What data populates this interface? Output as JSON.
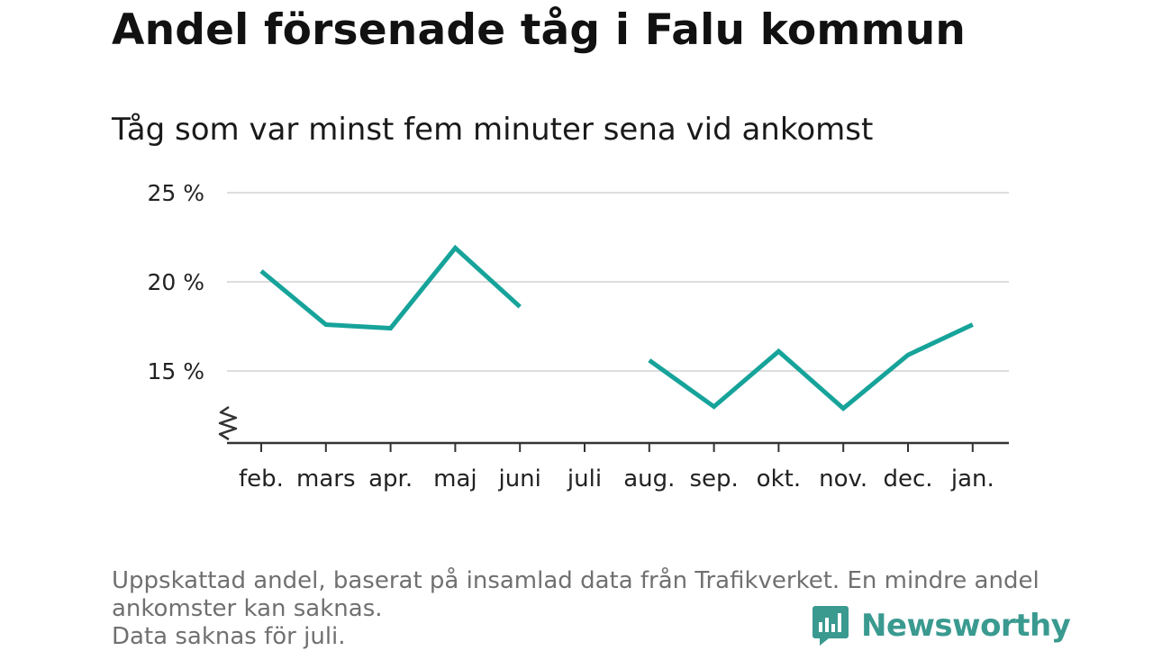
{
  "header": {
    "title": "Andel försenade tåg i Falu kommun",
    "subtitle": "Tåg som var minst fem minuter sena vid ankomst"
  },
  "chart_data": {
    "type": "line",
    "title": "Andel försenade tåg i Falu kommun",
    "subtitle": "Tåg som var minst fem minuter sena vid ankomst",
    "categories": [
      "feb.",
      "mars",
      "apr.",
      "maj",
      "juni",
      "juli",
      "aug.",
      "sep.",
      "okt.",
      "nov.",
      "dec.",
      "jan."
    ],
    "series": [
      {
        "values": [
          20.6,
          17.6,
          17.4,
          21.9,
          18.6,
          null,
          15.6,
          13.0,
          16.1,
          12.9,
          15.9,
          17.6
        ],
        "color": "#16a39a"
      }
    ],
    "yticks": [
      15,
      20,
      25
    ],
    "ytick_labels": [
      "15 %",
      "20 %",
      "25 %"
    ],
    "ylim": [
      11,
      25
    ],
    "axis_break": true,
    "grid": true,
    "xlabel": "",
    "ylabel": ""
  },
  "footer": {
    "note_line1": "Uppskattad andel, baserat på insamlad data från Trafikverket. En mindre andel",
    "note_line2": "ankomster kan saknas.",
    "note_line3": "Data saknas för juli."
  },
  "brand": {
    "name": "Newsworthy",
    "color": "#3a9a90",
    "icon": "newsworthy-logo-icon"
  },
  "colors": {
    "line": "#16a39a",
    "grid": "#dddddd",
    "axis": "#333333"
  }
}
